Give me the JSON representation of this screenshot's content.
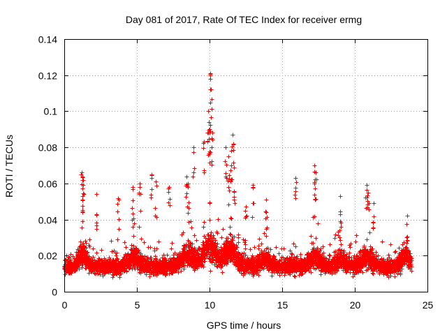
{
  "chart_data": {
    "type": "scatter",
    "title": "Day 081 of 2017, Rate Of TEC Index for receiver ermg",
    "xlabel": "GPS time / hours",
    "ylabel": "ROTI / TECUs",
    "xlim": [
      0,
      25
    ],
    "ylim": [
      0,
      0.14
    ],
    "xticks": [
      0,
      5,
      10,
      15,
      20,
      25
    ],
    "xtick_labels": [
      "0",
      "5",
      "10",
      "15",
      "20",
      "25"
    ],
    "yticks": [
      0,
      0.02,
      0.04,
      0.06,
      0.08,
      0.1,
      0.12,
      0.14
    ],
    "ytick_labels": [
      "0",
      "0.02",
      "0.04",
      "0.06",
      "0.08",
      "0.1",
      "0.12",
      "0.14"
    ],
    "grid": true,
    "marker": "+",
    "series_color": "#ff0000",
    "data_span_hours": [
      0,
      23.9
    ],
    "baseline_range": [
      0.003,
      0.035
    ],
    "notable_points": [
      {
        "x": 1.2,
        "y": 0.066
      },
      {
        "x": 1.25,
        "y": 0.064
      },
      {
        "x": 1.3,
        "y": 0.062
      },
      {
        "x": 2.2,
        "y": 0.054
      },
      {
        "x": 3.7,
        "y": 0.052
      },
      {
        "x": 4.7,
        "y": 0.058
      },
      {
        "x": 5.2,
        "y": 0.06
      },
      {
        "x": 6.0,
        "y": 0.065
      },
      {
        "x": 6.3,
        "y": 0.061
      },
      {
        "x": 7.2,
        "y": 0.058
      },
      {
        "x": 8.4,
        "y": 0.064
      },
      {
        "x": 8.5,
        "y": 0.06
      },
      {
        "x": 8.9,
        "y": 0.08
      },
      {
        "x": 9.6,
        "y": 0.083
      },
      {
        "x": 9.9,
        "y": 0.1
      },
      {
        "x": 9.95,
        "y": 0.094
      },
      {
        "x": 10.0,
        "y": 0.09
      },
      {
        "x": 10.05,
        "y": 0.121
      },
      {
        "x": 10.1,
        "y": 0.112
      },
      {
        "x": 10.2,
        "y": 0.088
      },
      {
        "x": 11.1,
        "y": 0.08
      },
      {
        "x": 11.3,
        "y": 0.075
      },
      {
        "x": 11.6,
        "y": 0.087
      },
      {
        "x": 11.5,
        "y": 0.078
      },
      {
        "x": 11.7,
        "y": 0.069
      },
      {
        "x": 12.5,
        "y": 0.047
      },
      {
        "x": 13.0,
        "y": 0.059
      },
      {
        "x": 13.9,
        "y": 0.051
      },
      {
        "x": 15.9,
        "y": 0.063
      },
      {
        "x": 17.2,
        "y": 0.07
      },
      {
        "x": 17.3,
        "y": 0.066
      },
      {
        "x": 19.0,
        "y": 0.053
      },
      {
        "x": 20.8,
        "y": 0.059
      },
      {
        "x": 20.9,
        "y": 0.055
      },
      {
        "x": 21.3,
        "y": 0.049
      },
      {
        "x": 23.6,
        "y": 0.042
      }
    ]
  }
}
